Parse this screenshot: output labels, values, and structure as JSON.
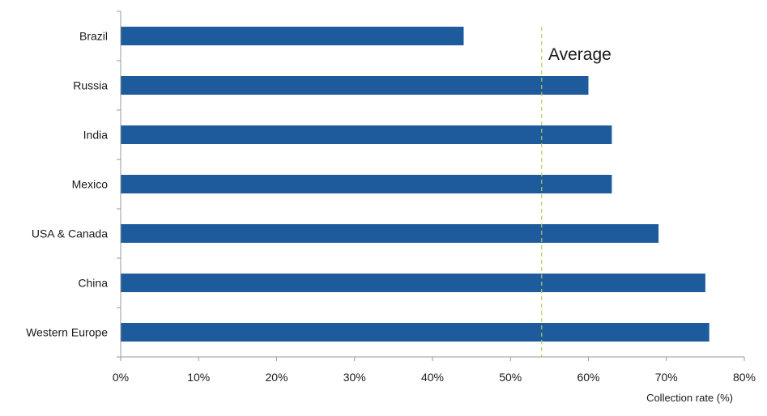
{
  "chart_data": {
    "type": "bar",
    "orientation": "horizontal",
    "categories": [
      "Brazil",
      "Russia",
      "India",
      "Mexico",
      "USA & Canada",
      "China",
      "Western Europe"
    ],
    "values": [
      44,
      60,
      63,
      63,
      69,
      75,
      75.5
    ],
    "xlabel": "Collection rate (%)",
    "xlim": [
      0,
      80
    ],
    "x_ticks": [
      "0%",
      "10%",
      "20%",
      "30%",
      "40%",
      "50%",
      "60%",
      "70%",
      "80%"
    ],
    "grid": false,
    "legend": "none",
    "bar_color": "#1e5b9c",
    "annotations": [
      {
        "label": "Average",
        "value": 54,
        "style": "dashed vertical line",
        "color": "#b8c95a"
      }
    ]
  }
}
